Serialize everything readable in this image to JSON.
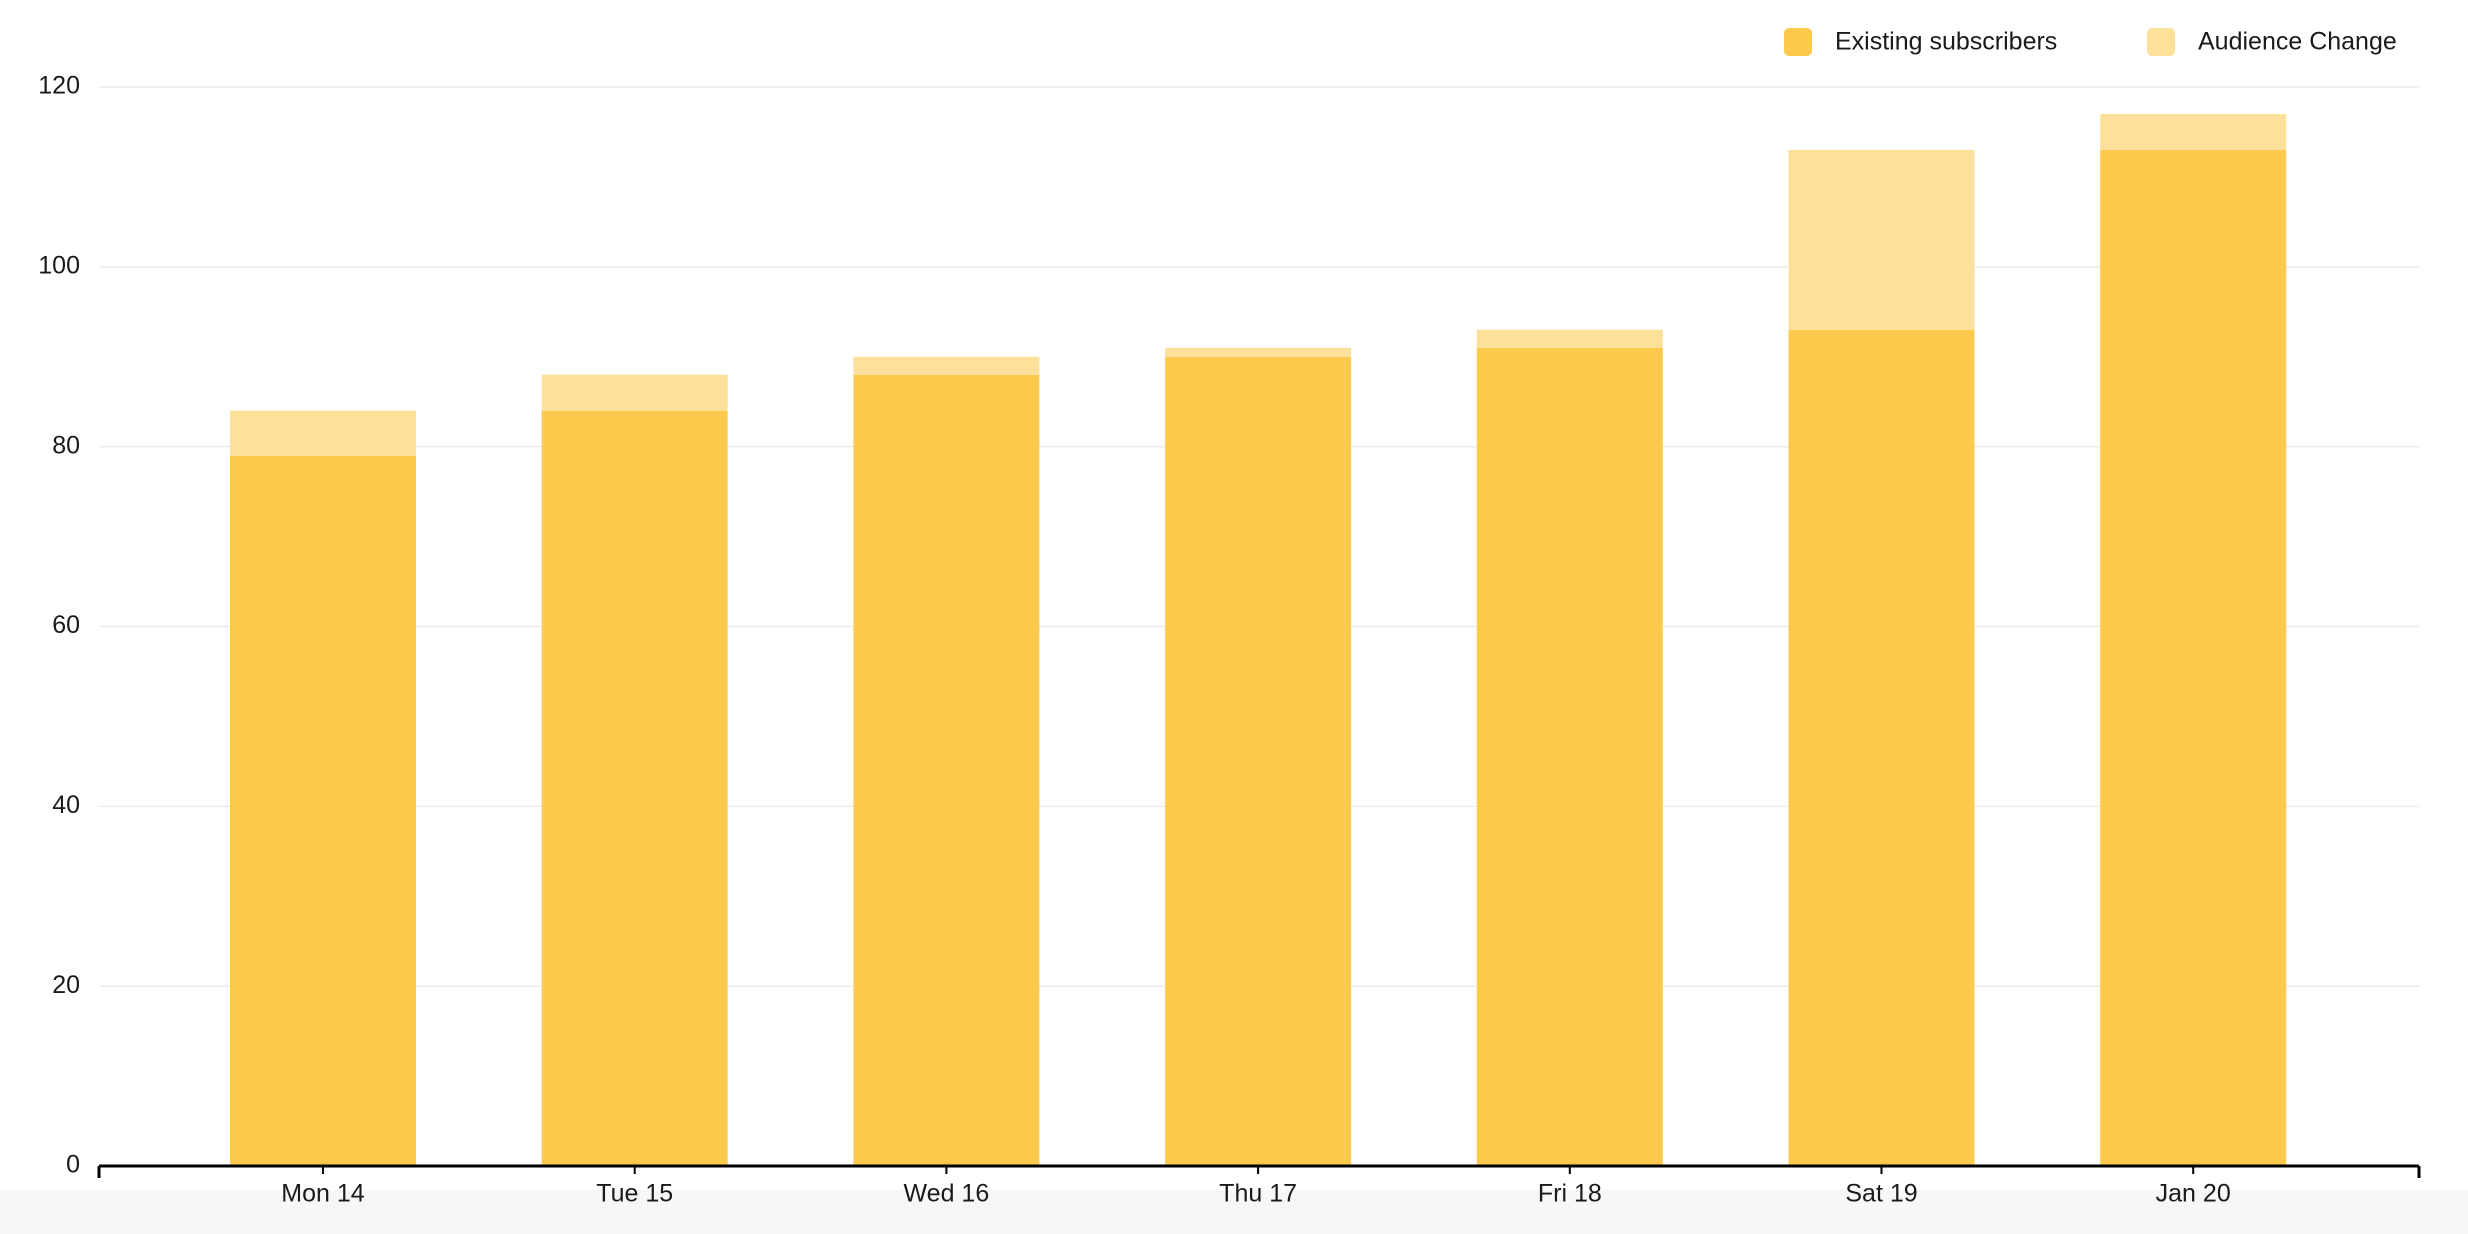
{
  "chart_data": {
    "type": "stacked-bar",
    "categories": [
      "Mon 14",
      "Tue 15",
      "Wed 16",
      "Thu 17",
      "Fri 18",
      "Sat 19",
      "Jan 20"
    ],
    "series": [
      {
        "name": "Existing subscribers",
        "color": "#fdca4e",
        "values": [
          79,
          84,
          88,
          90,
          91,
          93,
          113
        ]
      },
      {
        "name": "Audience Change",
        "color": "#fde09a",
        "values": [
          5,
          4,
          2,
          1,
          2,
          20,
          4
        ]
      }
    ],
    "ylim": [
      0,
      120
    ],
    "yticks": [
      0,
      20,
      40,
      60,
      80,
      100,
      120
    ],
    "grid": true,
    "legend": "top-right"
  }
}
